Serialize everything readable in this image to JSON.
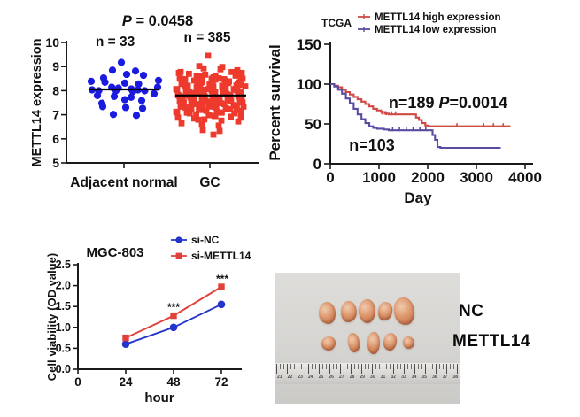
{
  "meta": {
    "background": "#ffffff",
    "axis_color": "#1a1a1a"
  },
  "chart_data": [
    {
      "type": "scatter",
      "title": "P = 0.0458",
      "title_p": "P",
      "title_rest": " = 0.0458",
      "ylabel": "METTL14 expression",
      "ylim": [
        5,
        10
      ],
      "ytick_labels": [
        "10",
        "9",
        "8",
        "7",
        "6",
        "5"
      ],
      "categories": [
        "Adjacent normal",
        "GC"
      ],
      "group_labels": [
        "n = 33",
        "n = 385"
      ],
      "series": [
        {
          "name": "Adjacent normal",
          "n": 33,
          "color": "#1b1be0",
          "marker": "circle",
          "mean": 8.05,
          "rows": [
            {
              "v": 9.1,
              "n": 1
            },
            {
              "v": 8.85,
              "n": 2
            },
            {
              "v": 8.6,
              "n": 3
            },
            {
              "v": 8.35,
              "n": 5
            },
            {
              "v": 8.07,
              "n": 8
            },
            {
              "v": 7.93,
              "n": 2
            },
            {
              "v": 7.8,
              "n": 4
            },
            {
              "v": 7.55,
              "n": 3
            },
            {
              "v": 7.3,
              "n": 3
            },
            {
              "v": 7.05,
              "n": 2
            }
          ]
        },
        {
          "name": "GC",
          "n": 385,
          "color": "#ee3a2c",
          "marker": "square",
          "mean": 7.8,
          "rows": [
            {
              "v": 9.38,
              "n": 1
            },
            {
              "v": 9.02,
              "n": 2
            },
            {
              "v": 8.85,
              "n": 4
            },
            {
              "v": 8.7,
              "n": 6
            },
            {
              "v": 8.55,
              "n": 9
            },
            {
              "v": 8.42,
              "n": 11
            },
            {
              "v": 8.28,
              "n": 12
            },
            {
              "v": 8.14,
              "n": 13
            },
            {
              "v": 8.0,
              "n": 13
            },
            {
              "v": 7.86,
              "n": 13
            },
            {
              "v": 7.72,
              "n": 13
            },
            {
              "v": 7.58,
              "n": 13
            },
            {
              "v": 7.44,
              "n": 12
            },
            {
              "v": 7.3,
              "n": 11
            },
            {
              "v": 7.16,
              "n": 10
            },
            {
              "v": 7.02,
              "n": 8
            },
            {
              "v": 6.88,
              "n": 6
            },
            {
              "v": 6.72,
              "n": 4
            },
            {
              "v": 6.55,
              "n": 2
            },
            {
              "v": 6.4,
              "n": 2
            },
            {
              "v": 6.1,
              "n": 1
            }
          ]
        }
      ]
    },
    {
      "type": "line",
      "subtype": "kaplan-meier",
      "title": "TCGA",
      "ylabel": "Percent survival",
      "xlabel": "Day",
      "xlim": [
        0,
        4000
      ],
      "ylim": [
        0,
        150
      ],
      "xtick_labels": [
        "0",
        "1000",
        "2000",
        "3000",
        "4000"
      ],
      "ytick_labels": [
        "150",
        "100",
        "50",
        "0"
      ],
      "legend_position": "top",
      "legend": [
        "METTL14 high expression",
        "METTL14 low expression"
      ],
      "annotations": [
        {
          "text_n": "n=189 ",
          "text_p": "P",
          "text_rest": "=0.0014"
        },
        {
          "text": "n=103"
        }
      ],
      "series": [
        {
          "name": "METTL14 high expression",
          "color": "#cf4a45",
          "steps": [
            [
              0,
              100
            ],
            [
              80,
              98
            ],
            [
              160,
              96
            ],
            [
              240,
              93
            ],
            [
              320,
              90
            ],
            [
              400,
              87
            ],
            [
              480,
              84
            ],
            [
              560,
              81
            ],
            [
              640,
              78
            ],
            [
              720,
              75
            ],
            [
              800,
              72
            ],
            [
              880,
              69
            ],
            [
              960,
              67
            ],
            [
              1040,
              65
            ],
            [
              1120,
              63
            ],
            [
              1200,
              62
            ],
            [
              1700,
              62
            ],
            [
              1760,
              58
            ],
            [
              1820,
              55
            ],
            [
              1880,
              51
            ],
            [
              1950,
              48
            ],
            [
              2020,
              47
            ],
            [
              3700,
              47
            ]
          ],
          "censor": [
            [
              1060,
              63
            ],
            [
              1150,
              62
            ],
            [
              1260,
              62
            ],
            [
              1340,
              62
            ],
            [
              2600,
              47
            ],
            [
              3150,
              47
            ],
            [
              3350,
              47
            ],
            [
              3550,
              47
            ]
          ]
        },
        {
          "name": "METTL14 low expression",
          "color": "#5a4da1",
          "steps": [
            [
              0,
              100
            ],
            [
              80,
              97
            ],
            [
              160,
              93
            ],
            [
              240,
              88
            ],
            [
              320,
              82
            ],
            [
              400,
              76
            ],
            [
              480,
              69
            ],
            [
              560,
              62
            ],
            [
              640,
              56
            ],
            [
              720,
              51
            ],
            [
              800,
              47
            ],
            [
              880,
              45
            ],
            [
              960,
              44
            ],
            [
              1100,
              43
            ],
            [
              1200,
              42
            ],
            [
              2050,
              42
            ],
            [
              2100,
              36
            ],
            [
              2150,
              30
            ],
            [
              2200,
              21
            ],
            [
              2260,
              20
            ],
            [
              3500,
              20
            ]
          ],
          "censor": [
            [
              1280,
              42
            ],
            [
              1420,
              42
            ],
            [
              1560,
              42
            ],
            [
              1700,
              42
            ],
            [
              1840,
              42
            ],
            [
              1960,
              42
            ]
          ]
        }
      ]
    },
    {
      "type": "line",
      "title": "MGC-803",
      "xlabel": "hour",
      "ylabel": "Cell viability (OD value)",
      "x": [
        24,
        48,
        72
      ],
      "xtick_labels": [
        "0",
        "24",
        "48",
        "72"
      ],
      "ytick_labels": [
        "2.5",
        "2.0",
        "1.5",
        "1.0",
        "0.5",
        "0.0"
      ],
      "ylim": [
        0,
        2.5
      ],
      "series": [
        {
          "name": "si-NC",
          "color": "#2334cc",
          "marker": "circle",
          "values": [
            0.6,
            1.0,
            1.55
          ]
        },
        {
          "name": "si-METTL14",
          "color": "#e2403a",
          "marker": "square",
          "values": [
            0.75,
            1.28,
            1.97
          ]
        }
      ],
      "significance": [
        {
          "x": 48,
          "label": "***"
        },
        {
          "x": 72,
          "label": "***"
        }
      ]
    }
  ],
  "photo": {
    "labels": [
      "NC",
      "METTL14"
    ],
    "background": "#d8d7d3",
    "tumor_color": "#d98f68",
    "rows": [
      {
        "label": "NC",
        "tumors": [
          {
            "x": 50,
            "y": 33,
            "w": 19,
            "h": 25
          },
          {
            "x": 75,
            "y": 32,
            "w": 18,
            "h": 24
          },
          {
            "x": 95,
            "y": 30,
            "w": 19,
            "h": 27
          },
          {
            "x": 117,
            "y": 33,
            "w": 16,
            "h": 21
          },
          {
            "x": 135,
            "y": 28,
            "w": 23,
            "h": 31
          }
        ]
      },
      {
        "label": "METTL14",
        "tumors": [
          {
            "x": 53,
            "y": 72,
            "w": 16,
            "h": 16
          },
          {
            "x": 83,
            "y": 68,
            "w": 13,
            "h": 22
          },
          {
            "x": 105,
            "y": 67,
            "w": 14,
            "h": 25
          },
          {
            "x": 123,
            "y": 68,
            "w": 15,
            "h": 20
          },
          {
            "x": 145,
            "y": 72,
            "w": 13,
            "h": 14
          }
        ]
      }
    ],
    "ruler_numbers": [
      "21",
      "22",
      "23",
      "24",
      "25",
      "26",
      "27",
      "28",
      "29",
      "30",
      "31",
      "32",
      "33",
      "34",
      "35",
      "36",
      "37",
      "38"
    ]
  }
}
